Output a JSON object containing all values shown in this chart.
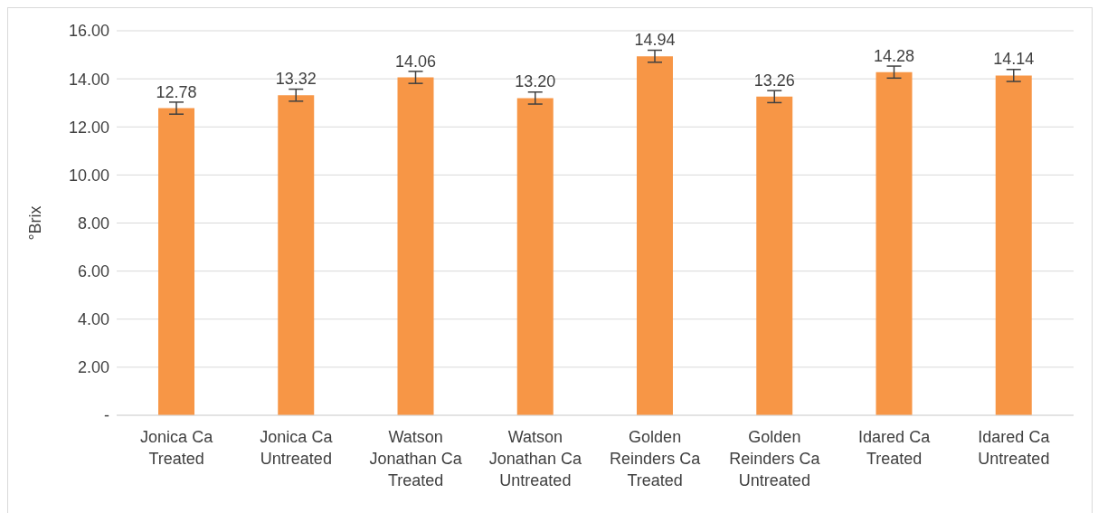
{
  "chart_data": {
    "type": "bar",
    "ylabel": "°Brix",
    "categories": [
      "Jonica Ca Treated",
      "Jonica Ca Untreated",
      "Watson Jonathan Ca Treated",
      "Watson Jonathan Ca Untreated",
      "Golden Reinders Ca Treated",
      "Golden Reinders Ca Untreated",
      "Idared Ca Treated",
      "Idared Ca Untreated"
    ],
    "values": [
      12.78,
      13.32,
      14.06,
      13.2,
      14.94,
      13.26,
      14.28,
      14.14
    ],
    "errors": [
      0.25,
      0.25,
      0.25,
      0.25,
      0.25,
      0.25,
      0.25,
      0.25
    ],
    "value_labels": [
      "12.78",
      "13.32",
      "14.06",
      "13.20",
      "14.94",
      "13.26",
      "14.28",
      "14.14"
    ],
    "color": "#f79646",
    "ylim": [
      0,
      16
    ],
    "yticks": [
      {
        "value": 0,
        "label": "-"
      },
      {
        "value": 2,
        "label": "2.00"
      },
      {
        "value": 4,
        "label": "4.00"
      },
      {
        "value": 6,
        "label": "6.00"
      },
      {
        "value": 8,
        "label": "8.00"
      },
      {
        "value": 10,
        "label": "10.00"
      },
      {
        "value": 12,
        "label": "12.00"
      },
      {
        "value": 14,
        "label": "14.00"
      },
      {
        "value": 16,
        "label": "16.00"
      }
    ],
    "grid": "y",
    "legend": false
  }
}
